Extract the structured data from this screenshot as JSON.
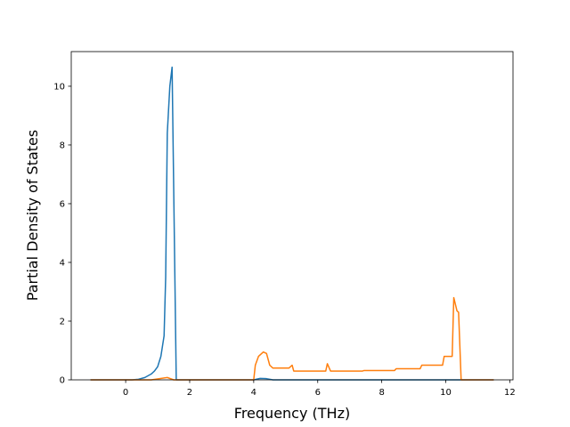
{
  "chart_data": {
    "type": "line",
    "xlabel": "Frequency (THz)",
    "ylabel": "Partial Density of States",
    "xlim": [
      -1.7,
      12.1
    ],
    "ylim": [
      0,
      11.18
    ],
    "xticks": [
      0,
      2,
      4,
      6,
      8,
      10,
      12
    ],
    "yticks": [
      0,
      2,
      4,
      6,
      8,
      10
    ],
    "grid": false,
    "series": [
      {
        "color": "#1f77b4",
        "x": [
          -1.1,
          0.2,
          0.4,
          0.6,
          0.8,
          0.9,
          1.0,
          1.1,
          1.2,
          1.25,
          1.3,
          1.38,
          1.45,
          1.58,
          2.0,
          4.0,
          4.2,
          4.4,
          4.6,
          11.5
        ],
        "values": [
          0,
          0,
          0.02,
          0.08,
          0.2,
          0.3,
          0.45,
          0.8,
          1.5,
          3.5,
          8.4,
          10.0,
          10.65,
          0,
          0,
          0,
          0.05,
          0.04,
          0,
          0
        ]
      },
      {
        "color": "#ff7f0e",
        "x": [
          -1.1,
          0.8,
          1.3,
          1.5,
          4.0,
          4.05,
          4.15,
          4.3,
          4.4,
          4.5,
          4.6,
          5.1,
          5.2,
          5.25,
          6.25,
          6.3,
          6.4,
          7.4,
          7.45,
          8.4,
          8.45,
          9.2,
          9.25,
          9.9,
          9.95,
          10.2,
          10.25,
          10.35,
          10.4,
          10.48,
          11.5
        ],
        "values": [
          0,
          0,
          0.08,
          0,
          0,
          0.5,
          0.8,
          0.95,
          0.9,
          0.5,
          0.4,
          0.4,
          0.5,
          0.3,
          0.3,
          0.55,
          0.3,
          0.3,
          0.32,
          0.32,
          0.38,
          0.38,
          0.5,
          0.5,
          0.8,
          0.8,
          2.8,
          2.35,
          2.3,
          0,
          0
        ]
      }
    ]
  }
}
